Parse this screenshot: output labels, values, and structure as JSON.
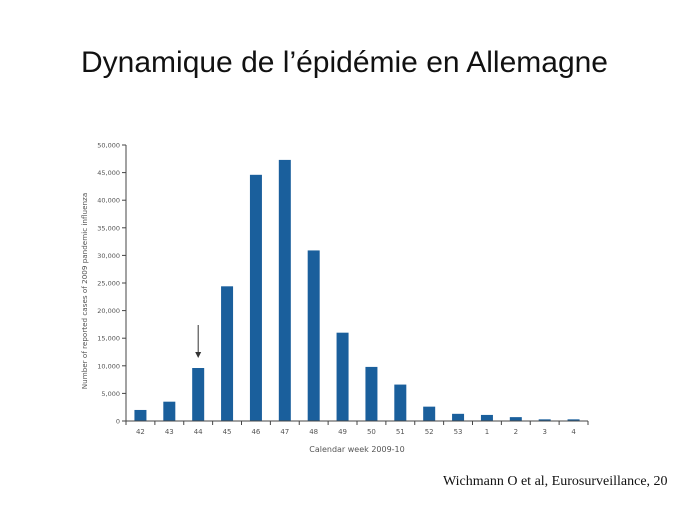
{
  "slide": {
    "title": "Dynamique de l’épidémie en Allemagne",
    "citation": "Wichmann  O et al, Eurosurveillance,  20"
  },
  "colors": {
    "bar": "#1a5f9c",
    "axis": "#444444",
    "text": "#555555",
    "arrow": "#333333"
  },
  "chart_data": {
    "type": "bar",
    "xlabel": "Calendar week 2009-10",
    "ylabel": "Number of reported cases of 2009 pandemic influenza",
    "categories": [
      "42",
      "43",
      "44",
      "45",
      "46",
      "47",
      "48",
      "49",
      "50",
      "51",
      "52",
      "53",
      "1",
      "2",
      "3",
      "4"
    ],
    "values": [
      2000,
      3500,
      9600,
      24400,
      44600,
      47300,
      30900,
      16000,
      9800,
      6600,
      2600,
      1300,
      1100,
      700,
      300,
      300
    ],
    "ylim": [
      0,
      50000
    ],
    "yticks": [
      0,
      5000,
      10000,
      15000,
      20000,
      25000,
      30000,
      35000,
      40000,
      45000,
      50000
    ],
    "ytick_labels": [
      "0",
      "5,000",
      "10,000",
      "15,000",
      "20,000",
      "25,000",
      "30,000",
      "35,000",
      "40,000",
      "45,000",
      "50,000"
    ],
    "annotation": {
      "type": "arrow",
      "category": "44"
    },
    "grid": false,
    "legend": "none"
  }
}
